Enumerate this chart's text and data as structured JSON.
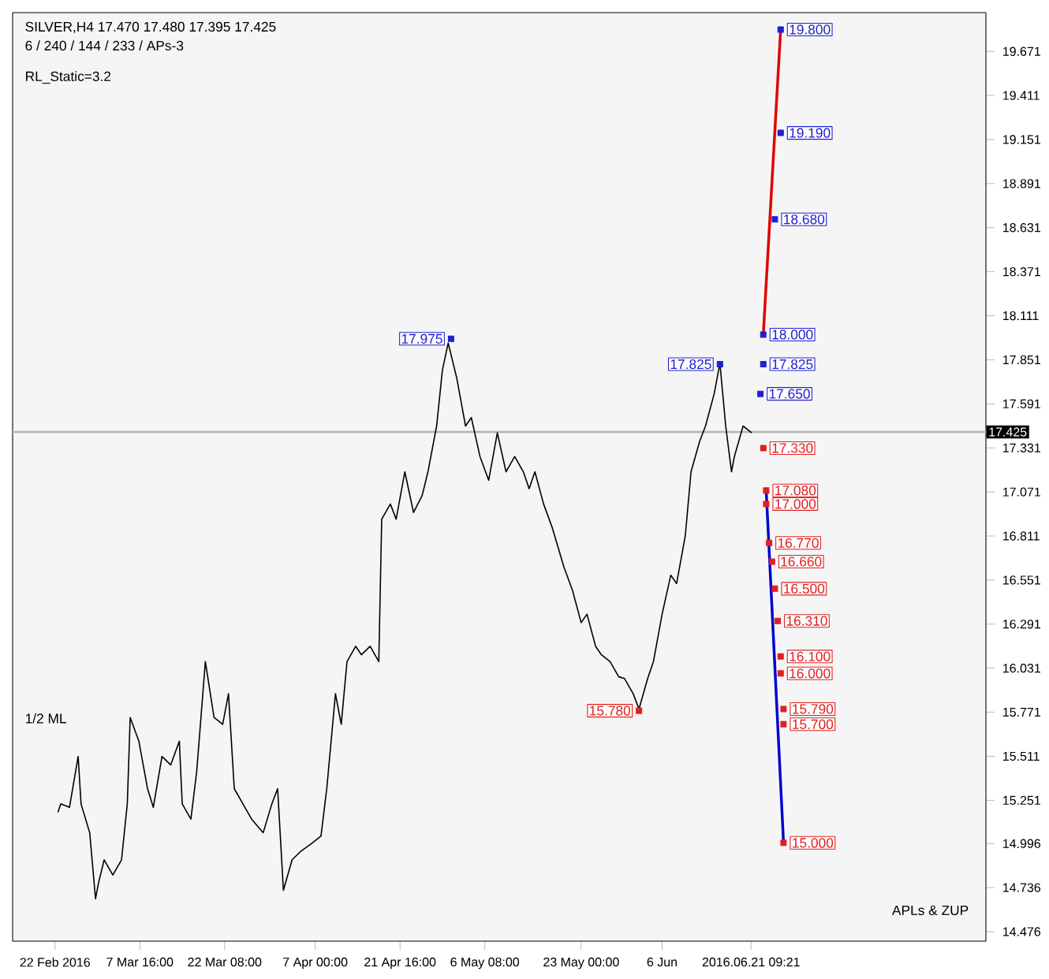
{
  "chart_data": {
    "type": "line",
    "title": "SILVER,H4 17.470 17.480 17.395 17.425",
    "subtitle": "6 / 240 / 144 / 233 / APs-3",
    "annotations": [
      "RL_Static=3.2",
      "1/2 ML",
      "APLs & ZUP"
    ],
    "xlim": [
      "2016-02-14T16:00",
      "2016-08-01"
    ],
    "ylim": [
      14.42,
      19.9
    ],
    "xticks": [
      {
        "value": "2016-02-22",
        "label": "22 Feb 2016"
      },
      {
        "value": "2016-03-07T16:00",
        "label": "7 Mar 16:00"
      },
      {
        "value": "2016-03-22T08:00",
        "label": "22 Mar 08:00"
      },
      {
        "value": "2016-04-07T00:00",
        "label": "7 Apr 00:00"
      },
      {
        "value": "2016-04-21T16:00",
        "label": "21 Apr 16:00"
      },
      {
        "value": "2016-05-06T08:00",
        "label": "6 May 08:00"
      },
      {
        "value": "2016-05-23T00:00",
        "label": "23 May 00:00"
      },
      {
        "value": "2016-06-06",
        "label": "6 Jun"
      },
      {
        "value": "2016-06-21T09:21",
        "label": "2016.06.21 09:21"
      }
    ],
    "yticks": [
      {
        "value": 14.476,
        "label": "14.476"
      },
      {
        "value": 14.736,
        "label": "14.736"
      },
      {
        "value": 14.996,
        "label": "14.996"
      },
      {
        "value": 15.251,
        "label": "15.251"
      },
      {
        "value": 15.511,
        "label": "15.511"
      },
      {
        "value": 15.771,
        "label": "15.771"
      },
      {
        "value": 16.031,
        "label": "16.031"
      },
      {
        "value": 16.291,
        "label": "16.291"
      },
      {
        "value": 16.551,
        "label": "16.551"
      },
      {
        "value": 16.811,
        "label": "16.811"
      },
      {
        "value": 17.071,
        "label": "17.071"
      },
      {
        "value": 17.331,
        "label": "17.331"
      },
      {
        "value": 17.591,
        "label": "17.591"
      },
      {
        "value": 17.851,
        "label": "17.851"
      },
      {
        "value": 18.111,
        "label": "18.111"
      },
      {
        "value": 18.371,
        "label": "18.371"
      },
      {
        "value": 18.631,
        "label": "18.631"
      },
      {
        "value": 18.891,
        "label": "18.891"
      },
      {
        "value": 19.151,
        "label": "19.151"
      },
      {
        "value": 19.411,
        "label": "19.411"
      },
      {
        "value": 19.671,
        "label": "19.671"
      }
    ],
    "ref_lines": [
      {
        "axis": "y",
        "value": 17.425,
        "label": "17.425",
        "color": "#b4b4b4"
      }
    ],
    "series": [
      {
        "color": "#000000",
        "x": [
          "2016-02-22T12:00",
          "2016-02-23T00:00",
          "2016-02-24T12:00",
          "2016-02-26T00:00",
          "2016-02-26T12:00",
          "2016-02-28T00:00",
          "2016-02-29T00:00",
          "2016-02-29T12:00",
          "2016-03-01T12:00",
          "2016-03-03T00:00",
          "2016-03-04T12:00",
          "2016-03-05T12:00",
          "2016-03-06T00:00",
          "2016-03-07T12:00",
          "2016-03-09T00:00",
          "2016-03-10T00:00",
          "2016-03-11T12:00",
          "2016-03-13T00:00",
          "2016-03-14T12:00",
          "2016-03-15T00:00",
          "2016-03-16T12:00",
          "2016-03-17T12:00",
          "2016-03-19T00:00",
          "2016-03-20T12:00",
          "2016-03-22T00:00",
          "2016-03-23T00:00",
          "2016-03-24T00:00",
          "2016-03-25T12:00",
          "2016-03-27T00:00",
          "2016-03-29T00:00",
          "2016-03-30T12:00",
          "2016-03-31T12:00",
          "2016-04-01T12:00",
          "2016-04-03T00:00",
          "2016-04-04T12:00",
          "2016-04-06T12:00",
          "2016-04-08T00:00",
          "2016-04-09T00:00",
          "2016-04-10T12:00",
          "2016-04-11T12:00",
          "2016-04-12T12:00",
          "2016-04-14T00:00",
          "2016-04-15T00:00",
          "2016-04-16T12:00",
          "2016-04-18T00:00",
          "2016-04-18T12:00",
          "2016-04-20T00:00",
          "2016-04-21T00:00",
          "2016-04-22T12:00",
          "2016-04-24T00:00",
          "2016-04-25T12:00",
          "2016-04-26T12:00",
          "2016-04-28T00:00",
          "2016-04-29T00:00",
          "2016-04-30T00:00",
          "2016-05-01T12:00",
          "2016-05-03T00:00",
          "2016-05-04T00:00",
          "2016-05-05T12:00",
          "2016-05-07T00:00",
          "2016-05-08T12:00",
          "2016-05-10T00:00",
          "2016-05-11T12:00",
          "2016-05-13T00:00",
          "2016-05-14T00:00",
          "2016-05-15T00:00",
          "2016-05-16T12:00",
          "2016-05-18T00:00",
          "2016-05-20T00:00",
          "2016-05-21T12:00",
          "2016-05-23T00:00",
          "2016-05-24T00:00",
          "2016-05-25T12:00",
          "2016-05-26T12:00",
          "2016-05-28T00:00",
          "2016-05-29T12:00",
          "2016-05-30T12:00",
          "2016-06-01T00:00",
          "2016-06-02T00:00",
          "2016-06-03T12:00",
          "2016-06-04T12:00",
          "2016-06-06T00:00",
          "2016-06-07T12:00",
          "2016-06-08T12:00",
          "2016-06-10T00:00",
          "2016-06-11T00:00",
          "2016-06-12T12:00",
          "2016-06-13T12:00",
          "2016-06-15T00:00",
          "2016-06-16T00:00",
          "2016-06-17T00:00",
          "2016-06-18T00:00",
          "2016-06-18T12:00",
          "2016-06-20T00:00",
          "2016-06-21T12:00"
        ],
        "values": [
          15.18,
          15.23,
          15.21,
          15.51,
          15.23,
          15.06,
          14.67,
          14.76,
          14.9,
          14.81,
          14.9,
          15.23,
          15.74,
          15.6,
          15.32,
          15.21,
          15.51,
          15.46,
          15.6,
          15.23,
          15.14,
          15.42,
          16.07,
          15.74,
          15.7,
          15.88,
          15.32,
          15.23,
          15.14,
          15.06,
          15.23,
          15.32,
          14.72,
          14.9,
          14.95,
          15.0,
          15.04,
          15.32,
          15.88,
          15.7,
          16.07,
          16.16,
          16.11,
          16.16,
          16.07,
          16.91,
          17.0,
          16.91,
          17.19,
          16.95,
          17.05,
          17.19,
          17.46,
          17.79,
          17.95,
          17.74,
          17.46,
          17.51,
          17.28,
          17.14,
          17.42,
          17.19,
          17.28,
          17.19,
          17.09,
          17.19,
          17.0,
          16.86,
          16.63,
          16.49,
          16.3,
          16.35,
          16.16,
          16.11,
          16.07,
          15.98,
          15.97,
          15.88,
          15.79,
          15.97,
          16.07,
          16.35,
          16.58,
          16.53,
          16.81,
          17.19,
          17.37,
          17.46,
          17.65,
          17.83,
          17.46,
          17.19,
          17.28,
          17.46,
          17.42
        ]
      },
      {
        "type": "line",
        "color": "#e00000",
        "x": [
          "2016-06-23T12:00",
          "2016-06-26T12:00"
        ],
        "values": [
          18.0,
          19.8
        ]
      },
      {
        "type": "line",
        "color": "#0000d0",
        "x": [
          "2016-06-24T00:00",
          "2016-06-27T00:00"
        ],
        "values": [
          17.08,
          15.0
        ]
      },
      {
        "type": "scatter",
        "marker": "square",
        "color": "#2020d0",
        "x": [
          "2016-04-30T12:00",
          "2016-06-16T00:00",
          "2016-06-26T12:00",
          "2016-06-26T12:00",
          "2016-06-25T12:00",
          "2016-06-23T12:00",
          "2016-06-23T12:00",
          "2016-06-23T00:00"
        ],
        "values": [
          17.975,
          17.825,
          19.8,
          19.19,
          18.68,
          18.0,
          17.825,
          17.65
        ],
        "value_labels": [
          "17.975",
          "17.825",
          "19.800",
          "19.190",
          "18.680",
          "18.000",
          "17.825",
          "17.650"
        ]
      },
      {
        "type": "scatter",
        "marker": "square",
        "color": "#e02020",
        "x": [
          "2016-06-02T00:00",
          "2016-06-23T12:00",
          "2016-06-24T00:00",
          "2016-06-24T00:00",
          "2016-06-24T12:00",
          "2016-06-25T00:00",
          "2016-06-25T12:00",
          "2016-06-26T00:00",
          "2016-06-26T12:00",
          "2016-06-26T12:00",
          "2016-06-27T00:00",
          "2016-06-27T00:00",
          "2016-06-27T00:00"
        ],
        "values": [
          15.78,
          17.33,
          17.08,
          17.0,
          16.77,
          16.66,
          16.5,
          16.31,
          16.1,
          16.0,
          15.79,
          15.7,
          15.0
        ],
        "value_labels": [
          "15.780",
          "17.330",
          "17.080",
          "17.000",
          "16.770",
          "16.660",
          "16.500",
          "16.310",
          "16.100",
          "16.000",
          "15.790",
          "15.700",
          "15.000"
        ]
      }
    ]
  }
}
